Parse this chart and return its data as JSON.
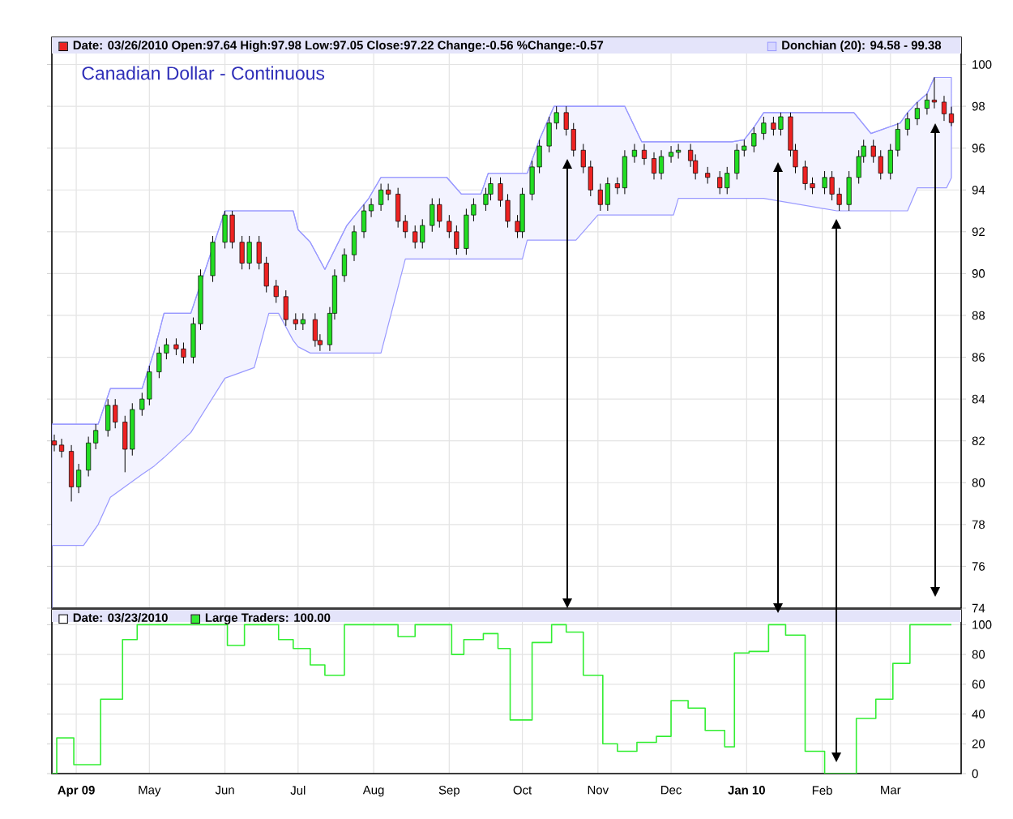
{
  "chart_data": [
    {
      "type": "candlestick",
      "title": "Canadian Dollar - Continuous",
      "legend": "top",
      "grid": true,
      "tick_labels": "y",
      "xlim": [
        "2009-03-22",
        "2010-03-30"
      ],
      "ylim": [
        74,
        101.3
      ],
      "xticks": [
        {
          "value": "2009-04-01",
          "label": null
        },
        {
          "value": "2009-05-01",
          "label": null
        },
        {
          "value": "2009-06-01",
          "label": null
        },
        {
          "value": "2009-07-01",
          "label": null
        },
        {
          "value": "2009-08-01",
          "label": null
        },
        {
          "value": "2009-09-01",
          "label": null
        },
        {
          "value": "2009-10-01",
          "label": null
        },
        {
          "value": "2009-11-01",
          "label": null
        },
        {
          "value": "2009-12-01",
          "label": null
        },
        {
          "value": "2010-01-01",
          "label": null
        },
        {
          "value": "2010-02-01",
          "label": null
        },
        {
          "value": "2010-03-01",
          "label": null
        }
      ],
      "yticks": [
        74,
        76,
        78,
        80,
        82,
        84,
        86,
        88,
        90,
        92,
        94,
        96,
        98,
        100
      ],
      "series": [
        {
          "type": "candlestick",
          "name": "Date: 03/26/2010  Open:97.64  High:97.98  Low:97.05  Close:97.22  Change:-0.56  %Change:-0.57",
          "colors": [
            "#ee2222",
            "#ee2222",
            "#ee2222",
            "#22dd22",
            "#22dd22",
            "#22dd22",
            "#22dd22",
            "#ee2222",
            "#ee2222",
            "#22dd22",
            "#22dd22",
            "#22dd22",
            "#22dd22",
            "#22dd22",
            "#ee2222",
            "#ee2222",
            "#22dd22",
            "#22dd22",
            "#22dd22",
            "#22dd22",
            "#ee2222",
            "#ee2222",
            "#22dd22",
            "#ee2222",
            "#ee2222",
            "#ee2222",
            "#ee2222",
            "#ee2222",
            "#22dd22",
            "#ee2222",
            "#ee2222",
            "#22dd22",
            "#22dd22",
            "#22dd22",
            "#22dd22",
            "#22dd22",
            "#22dd22",
            "#22dd22",
            "#ee2222",
            "#ee2222",
            "#ee2222",
            "#ee2222",
            "#22dd22",
            "#22dd22",
            "#ee2222",
            "#ee2222",
            "#ee2222",
            "#22dd22",
            "#22dd22",
            "#22dd22",
            "#22dd22",
            "#ee2222",
            "#ee2222",
            "#ee2222",
            "#22dd22",
            "#22dd22",
            "#22dd22",
            "#22dd22",
            "#22dd22",
            "#ee2222",
            "#ee2222",
            "#ee2222",
            "#ee2222",
            "#ee2222",
            "#22dd22",
            "#ee2222",
            "#22dd22",
            "#22dd22",
            "#ee2222",
            "#ee2222",
            "#22dd22",
            "#22dd22",
            "#22dd22",
            "#ee2222",
            "#ee2222",
            "#ee2222",
            "#ee2222",
            "#22dd22",
            "#22dd22",
            "#22dd22",
            "#22dd22",
            "#22dd22",
            "#ee2222",
            "#22dd22",
            "#ee2222",
            "#ee2222",
            "#ee2222",
            "#ee2222",
            "#22dd22",
            "#ee2222",
            "#ee2222",
            "#22dd22",
            "#22dd22",
            "#22dd22",
            "#ee2222",
            "#ee2222",
            "#22dd22",
            "#22dd22",
            "#22dd22",
            "#22dd22",
            "#22dd22",
            "#ee2222",
            "#ee2222",
            "#ee2222"
          ],
          "x": [
            "2009-03-23",
            "2009-03-26",
            "2009-03-30",
            "2009-04-02",
            "2009-04-06",
            "2009-04-09",
            "2009-04-14",
            "2009-04-17",
            "2009-04-21",
            "2009-04-24",
            "2009-04-28",
            "2009-05-01",
            "2009-05-05",
            "2009-05-08",
            "2009-05-12",
            "2009-05-15",
            "2009-05-19",
            "2009-05-22",
            "2009-05-27",
            "2009-06-01",
            "2009-06-04",
            "2009-06-08",
            "2009-06-11",
            "2009-06-15",
            "2009-06-18",
            "2009-06-22",
            "2009-06-26",
            "2009-06-30",
            "2009-07-03",
            "2009-07-08",
            "2009-07-10",
            "2009-07-14",
            "2009-07-16",
            "2009-07-20",
            "2009-07-24",
            "2009-07-28",
            "2009-07-31",
            "2009-08-04",
            "2009-08-07",
            "2009-08-11",
            "2009-08-14",
            "2009-08-18",
            "2009-08-21",
            "2009-08-25",
            "2009-08-28",
            "2009-09-01",
            "2009-09-04",
            "2009-09-08",
            "2009-09-11",
            "2009-09-16",
            "2009-09-18",
            "2009-09-22",
            "2009-09-25",
            "2009-09-29",
            "2009-10-01",
            "2009-10-05",
            "2009-10-08",
            "2009-10-12",
            "2009-10-15",
            "2009-10-19",
            "2009-10-22",
            "2009-10-26",
            "2009-10-29",
            "2009-11-02",
            "2009-11-05",
            "2009-11-09",
            "2009-11-12",
            "2009-11-16",
            "2009-11-20",
            "2009-11-24",
            "2009-11-27",
            "2009-12-01",
            "2009-12-04",
            "2009-12-09",
            "2009-12-11",
            "2009-12-16",
            "2009-12-21",
            "2009-12-24",
            "2009-12-28",
            "2009-12-31",
            "2010-01-04",
            "2010-01-08",
            "2010-01-12",
            "2010-01-15",
            "2010-01-19",
            "2010-01-21",
            "2010-01-25",
            "2010-01-28",
            "2010-02-02",
            "2010-02-05",
            "2010-02-08",
            "2010-02-12",
            "2010-02-16",
            "2010-02-18",
            "2010-02-22",
            "2010-02-25",
            "2010-03-01",
            "2010-03-04",
            "2010-03-08",
            "2010-03-12",
            "2010-03-16",
            "2010-03-19",
            "2010-03-23",
            "2010-03-26"
          ],
          "ohlc": [
            [
              82.0,
              82.3,
              81.5,
              81.8
            ],
            [
              81.8,
              82.1,
              81.2,
              81.5
            ],
            [
              81.5,
              81.8,
              79.1,
              79.8
            ],
            [
              79.8,
              80.9,
              79.5,
              80.6
            ],
            [
              80.6,
              82.2,
              80.3,
              81.9
            ],
            [
              81.9,
              82.8,
              81.6,
              82.5
            ],
            [
              82.5,
              84.0,
              82.2,
              83.7
            ],
            [
              83.7,
              84.0,
              82.6,
              82.9
            ],
            [
              82.9,
              83.2,
              80.5,
              81.6
            ],
            [
              81.6,
              83.8,
              81.3,
              83.5
            ],
            [
              83.5,
              84.3,
              83.2,
              84.0
            ],
            [
              84.0,
              85.6,
              83.7,
              85.3
            ],
            [
              85.3,
              86.5,
              85.0,
              86.2
            ],
            [
              86.2,
              86.9,
              85.9,
              86.6
            ],
            [
              86.6,
              86.9,
              86.1,
              86.4
            ],
            [
              86.4,
              86.7,
              85.7,
              86.0
            ],
            [
              86.0,
              87.9,
              85.7,
              87.6
            ],
            [
              87.6,
              90.2,
              87.3,
              89.9
            ],
            [
              89.9,
              91.8,
              89.6,
              91.5
            ],
            [
              91.5,
              93.0,
              91.2,
              92.8
            ],
            [
              92.8,
              93.0,
              91.2,
              91.5
            ],
            [
              91.5,
              91.8,
              90.2,
              90.5
            ],
            [
              90.5,
              91.8,
              90.2,
              91.5
            ],
            [
              91.5,
              91.8,
              90.2,
              90.5
            ],
            [
              90.5,
              90.8,
              89.1,
              89.4
            ],
            [
              89.4,
              89.7,
              88.6,
              88.9
            ],
            [
              88.9,
              89.2,
              87.5,
              87.8
            ],
            [
              87.8,
              88.1,
              87.3,
              87.6
            ],
            [
              87.6,
              88.1,
              87.3,
              87.8
            ],
            [
              87.8,
              88.1,
              86.5,
              86.8
            ],
            [
              86.8,
              87.1,
              86.3,
              86.6
            ],
            [
              86.6,
              88.4,
              86.3,
              88.1
            ],
            [
              88.1,
              90.2,
              87.8,
              89.9
            ],
            [
              89.9,
              91.2,
              89.6,
              90.9
            ],
            [
              90.9,
              92.3,
              90.6,
              92.0
            ],
            [
              92.0,
              93.3,
              91.7,
              93.0
            ],
            [
              93.0,
              93.6,
              92.7,
              93.3
            ],
            [
              93.3,
              94.3,
              93.0,
              94.0
            ],
            [
              94.0,
              94.3,
              93.5,
              93.8
            ],
            [
              93.8,
              94.1,
              92.2,
              92.5
            ],
            [
              92.5,
              92.8,
              91.7,
              92.0
            ],
            [
              92.0,
              92.3,
              91.2,
              91.5
            ],
            [
              91.5,
              92.6,
              91.2,
              92.3
            ],
            [
              92.3,
              93.6,
              92.0,
              93.3
            ],
            [
              93.3,
              93.6,
              92.2,
              92.5
            ],
            [
              92.5,
              92.8,
              91.7,
              92.0
            ],
            [
              92.0,
              92.3,
              90.9,
              91.2
            ],
            [
              91.2,
              93.1,
              90.9,
              92.8
            ],
            [
              92.8,
              93.6,
              92.5,
              93.3
            ],
            [
              93.3,
              94.1,
              93.0,
              93.8
            ],
            [
              93.8,
              94.6,
              93.5,
              94.3
            ],
            [
              94.3,
              94.6,
              93.2,
              93.5
            ],
            [
              93.5,
              93.8,
              92.2,
              92.5
            ],
            [
              92.5,
              92.8,
              91.7,
              92.0
            ],
            [
              92.0,
              94.1,
              91.7,
              93.8
            ],
            [
              93.8,
              95.4,
              93.5,
              95.1
            ],
            [
              95.1,
              96.4,
              94.8,
              96.1
            ],
            [
              96.1,
              97.5,
              95.8,
              97.2
            ],
            [
              97.2,
              98.0,
              96.9,
              97.7
            ],
            [
              97.7,
              98.0,
              96.6,
              96.9
            ],
            [
              96.9,
              97.2,
              95.6,
              95.9
            ],
            [
              95.9,
              96.2,
              94.8,
              95.1
            ],
            [
              95.1,
              95.4,
              93.7,
              94.0
            ],
            [
              94.0,
              94.3,
              93.0,
              93.3
            ],
            [
              93.3,
              94.6,
              93.0,
              94.3
            ],
            [
              94.3,
              94.6,
              93.8,
              94.1
            ],
            [
              94.1,
              95.9,
              93.8,
              95.6
            ],
            [
              95.6,
              96.2,
              95.3,
              95.9
            ],
            [
              95.9,
              96.2,
              95.2,
              95.5
            ],
            [
              95.5,
              95.8,
              94.5,
              94.8
            ],
            [
              94.8,
              95.9,
              94.5,
              95.6
            ],
            [
              95.6,
              96.1,
              95.3,
              95.8
            ],
            [
              95.8,
              96.2,
              95.5,
              95.9
            ],
            [
              95.9,
              96.2,
              95.1,
              95.4
            ],
            [
              95.4,
              95.7,
              94.5,
              94.8
            ],
            [
              94.8,
              95.1,
              94.3,
              94.6
            ],
            [
              94.6,
              94.9,
              93.8,
              94.1
            ],
            [
              94.1,
              95.1,
              93.8,
              94.8
            ],
            [
              94.8,
              96.2,
              94.5,
              95.9
            ],
            [
              95.9,
              96.4,
              95.6,
              96.1
            ],
            [
              96.1,
              97.0,
              95.8,
              96.7
            ],
            [
              96.7,
              97.5,
              96.4,
              97.2
            ],
            [
              97.2,
              97.5,
              96.6,
              96.9
            ],
            [
              96.9,
              97.7,
              96.6,
              97.5
            ],
            [
              97.5,
              97.7,
              95.6,
              95.9
            ],
            [
              95.9,
              96.2,
              94.8,
              95.1
            ],
            [
              95.1,
              95.4,
              94.0,
              94.3
            ],
            [
              94.3,
              94.6,
              93.8,
              94.1
            ],
            [
              94.1,
              94.9,
              93.8,
              94.6
            ],
            [
              94.6,
              94.9,
              93.5,
              93.8
            ],
            [
              93.8,
              94.1,
              93.0,
              93.3
            ],
            [
              93.3,
              94.9,
              93.0,
              94.6
            ],
            [
              94.6,
              95.9,
              94.3,
              95.6
            ],
            [
              95.6,
              96.4,
              95.3,
              96.1
            ],
            [
              96.1,
              96.4,
              95.3,
              95.6
            ],
            [
              95.6,
              95.9,
              94.5,
              94.8
            ],
            [
              94.8,
              96.2,
              94.5,
              95.9
            ],
            [
              95.9,
              97.2,
              95.6,
              96.9
            ],
            [
              96.9,
              97.7,
              96.6,
              97.4
            ],
            [
              97.4,
              98.2,
              97.1,
              97.9
            ],
            [
              97.9,
              98.6,
              97.6,
              98.3
            ],
            [
              98.3,
              99.38,
              97.9,
              98.2
            ],
            [
              98.2,
              98.5,
              97.3,
              97.64
            ],
            [
              97.64,
              97.98,
              97.05,
              97.22
            ]
          ]
        },
        {
          "type": "line",
          "name": "Donchian (20): 94.58 - 99.38",
          "color": "#9999ff",
          "x": [
            "2009-03-22",
            "2009-04-04",
            "2009-04-10",
            "2009-04-15",
            "2009-04-28",
            "2009-05-03",
            "2009-05-07",
            "2009-05-18",
            "2009-06-01",
            "2009-06-13",
            "2009-06-19",
            "2009-06-23",
            "2009-06-29",
            "2009-07-01",
            "2009-07-06",
            "2009-07-12",
            "2009-07-21",
            "2009-07-30",
            "2009-08-04",
            "2009-08-14",
            "2009-08-31",
            "2009-09-06",
            "2009-09-14",
            "2009-09-17",
            "2009-10-01",
            "2009-10-03",
            "2009-10-08",
            "2009-10-14",
            "2009-10-23",
            "2009-11-01",
            "2009-11-12",
            "2009-11-19",
            "2009-12-02",
            "2009-12-04",
            "2009-12-26",
            "2009-12-31",
            "2010-01-04",
            "2010-01-08",
            "2010-02-07",
            "2010-02-14",
            "2010-02-21",
            "2010-03-05",
            "2010-03-08",
            "2010-03-12",
            "2010-03-16",
            "2010-03-19",
            "2010-03-24",
            "2010-03-26"
          ],
          "values": [
            82.8,
            82.8,
            82.8,
            84.5,
            84.5,
            86.3,
            88.1,
            88.1,
            93.0,
            93.0,
            93.0,
            93.0,
            93.0,
            92.1,
            91.5,
            90.2,
            92.3,
            93.6,
            94.6,
            94.6,
            94.6,
            93.8,
            93.8,
            94.8,
            94.8,
            94.8,
            96.4,
            98.0,
            98.0,
            98.0,
            98.0,
            96.3,
            96.3,
            96.3,
            96.3,
            96.4,
            97.0,
            97.7,
            97.7,
            97.7,
            96.7,
            97.2,
            97.7,
            98.2,
            98.6,
            99.38,
            99.38,
            99.38
          ],
          "upper": [
            82.8,
            82.8,
            82.8,
            84.5,
            84.5,
            86.3,
            88.1,
            88.1,
            93.0,
            93.0,
            93.0,
            93.0,
            93.0,
            92.1,
            91.5,
            90.2,
            92.3,
            93.6,
            94.6,
            94.6,
            94.6,
            93.8,
            93.8,
            94.8,
            94.8,
            94.8,
            96.4,
            98.0,
            98.0,
            98.0,
            98.0,
            96.3,
            96.3,
            96.3,
            96.3,
            96.4,
            97.0,
            97.7,
            97.7,
            97.7,
            96.7,
            97.2,
            97.7,
            98.2,
            98.6,
            99.38,
            99.38,
            99.38
          ],
          "lower": [
            77.0,
            77.0,
            78.0,
            79.3,
            80.4,
            80.8,
            81.2,
            82.4,
            85.0,
            85.5,
            88.1,
            88.1,
            86.8,
            86.5,
            86.2,
            86.2,
            86.2,
            86.2,
            86.2,
            90.7,
            90.7,
            90.7,
            90.7,
            90.7,
            90.7,
            91.6,
            91.6,
            91.6,
            91.6,
            92.8,
            92.8,
            92.8,
            92.8,
            93.6,
            93.6,
            93.6,
            93.6,
            93.6,
            93.0,
            93.0,
            93.0,
            93.0,
            93.0,
            94.1,
            94.1,
            94.1,
            94.1,
            94.58
          ]
        }
      ]
    },
    {
      "type": "step",
      "legend": "top",
      "grid": true,
      "annotations": [
        "Date: 03/23/2010"
      ],
      "xlim": [
        "2009-03-22",
        "2010-03-30"
      ],
      "ylim": [
        0,
        110
      ],
      "xticks": [
        {
          "value": "2009-04-01",
          "label": "**Apr 09**"
        },
        {
          "value": "2009-05-01",
          "label": "May"
        },
        {
          "value": "2009-06-01",
          "label": "Jun"
        },
        {
          "value": "2009-07-01",
          "label": "Jul"
        },
        {
          "value": "2009-08-01",
          "label": "Aug"
        },
        {
          "value": "2009-09-01",
          "label": "Sep"
        },
        {
          "value": "2009-10-01",
          "label": "Oct"
        },
        {
          "value": "2009-11-01",
          "label": "Nov"
        },
        {
          "value": "2009-12-01",
          "label": "Dec"
        },
        {
          "value": "2010-01-01",
          "label": "**Jan 10**"
        },
        {
          "value": "2010-02-01",
          "label": "Feb"
        },
        {
          "value": "2010-03-01",
          "label": "Mar"
        }
      ],
      "yticks": [
        0,
        20,
        40,
        60,
        80,
        100
      ],
      "series": [
        {
          "name": "Large Traders: 100.00",
          "color": "#33ee33",
          "x": [
            "2009-03-22",
            "2009-03-24",
            "2009-03-31",
            "2009-04-11",
            "2009-04-20",
            "2009-04-26",
            "2009-06-02",
            "2009-06-09",
            "2009-06-23",
            "2009-06-29",
            "2009-07-06",
            "2009-07-12",
            "2009-07-20",
            "2009-08-11",
            "2009-08-18",
            "2009-09-02",
            "2009-09-07",
            "2009-09-15",
            "2009-09-21",
            "2009-09-26",
            "2009-10-05",
            "2009-10-13",
            "2009-10-19",
            "2009-10-26",
            "2009-11-03",
            "2009-11-09",
            "2009-11-17",
            "2009-11-25",
            "2009-12-01",
            "2009-12-08",
            "2009-12-15",
            "2009-12-23",
            "2009-12-27",
            "2010-01-02",
            "2010-01-10",
            "2010-01-17",
            "2010-01-25",
            "2010-02-02",
            "2010-02-15",
            "2010-02-23",
            "2010-03-02",
            "2010-03-09",
            "2010-03-26"
          ],
          "values": [
            0,
            24,
            6,
            50,
            90,
            100,
            86,
            100,
            90,
            84,
            73,
            66,
            100,
            92,
            100,
            80,
            90,
            94,
            84,
            36,
            88,
            100,
            95,
            66,
            20,
            15,
            21,
            25,
            49,
            44,
            29,
            18,
            81,
            82,
            100,
            93,
            15,
            0,
            37,
            50,
            74,
            100,
            100
          ]
        }
      ]
    }
  ]
}
